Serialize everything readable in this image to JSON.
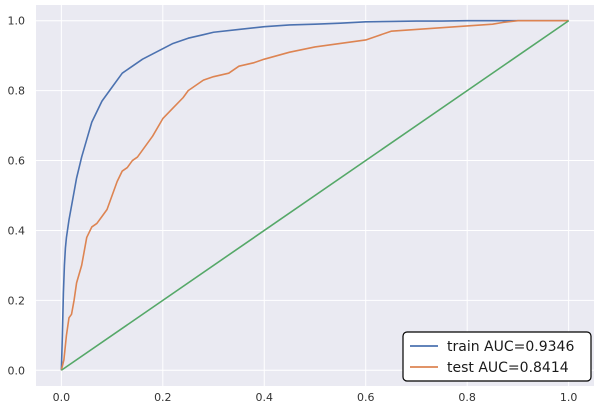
{
  "chart_data": {
    "type": "line",
    "title": "",
    "xlabel": "",
    "ylabel": "",
    "xlim": [
      -0.05,
      1.05
    ],
    "ylim": [
      -0.045,
      1.045
    ],
    "x_ticks": [
      "0.0",
      "0.2",
      "0.4",
      "0.6",
      "0.8",
      "1.0"
    ],
    "y_ticks": [
      "0.0",
      "0.2",
      "0.4",
      "0.6",
      "0.8",
      "1.0"
    ],
    "grid": true,
    "legend_position": "bottom-right",
    "background_color": "#eaeaf2",
    "series": [
      {
        "name": "train AUC=0.9346",
        "color": "#4c72b0",
        "x": [
          0,
          0.002,
          0.004,
          0.006,
          0.008,
          0.01,
          0.015,
          0.02,
          0.025,
          0.03,
          0.035,
          0.04,
          0.05,
          0.06,
          0.07,
          0.08,
          0.09,
          0.1,
          0.12,
          0.14,
          0.16,
          0.18,
          0.2,
          0.22,
          0.25,
          0.28,
          0.3,
          0.35,
          0.4,
          0.45,
          0.5,
          0.55,
          0.6,
          0.65,
          0.7,
          0.75,
          0.8,
          0.85,
          0.9,
          0.95,
          1.0
        ],
        "y": [
          0,
          0.1,
          0.22,
          0.3,
          0.35,
          0.38,
          0.43,
          0.47,
          0.51,
          0.55,
          0.58,
          0.61,
          0.66,
          0.71,
          0.74,
          0.77,
          0.79,
          0.81,
          0.85,
          0.87,
          0.89,
          0.905,
          0.92,
          0.935,
          0.95,
          0.96,
          0.967,
          0.975,
          0.983,
          0.988,
          0.99,
          0.993,
          0.997,
          0.998,
          0.999,
          0.999,
          1.0,
          1.0,
          1.0,
          1.0,
          1.0
        ]
      },
      {
        "name": "test AUC=0.8414",
        "color": "#dd8452",
        "x": [
          0,
          0.005,
          0.01,
          0.015,
          0.02,
          0.025,
          0.03,
          0.04,
          0.05,
          0.06,
          0.07,
          0.08,
          0.09,
          0.1,
          0.11,
          0.12,
          0.13,
          0.14,
          0.15,
          0.16,
          0.18,
          0.2,
          0.22,
          0.24,
          0.25,
          0.26,
          0.28,
          0.3,
          0.33,
          0.35,
          0.38,
          0.4,
          0.45,
          0.5,
          0.55,
          0.6,
          0.62,
          0.65,
          0.7,
          0.75,
          0.8,
          0.85,
          0.87,
          0.9,
          1.0
        ],
        "y": [
          0,
          0.03,
          0.1,
          0.15,
          0.16,
          0.2,
          0.25,
          0.3,
          0.38,
          0.41,
          0.42,
          0.44,
          0.46,
          0.5,
          0.54,
          0.57,
          0.58,
          0.6,
          0.61,
          0.63,
          0.67,
          0.72,
          0.75,
          0.78,
          0.8,
          0.81,
          0.83,
          0.84,
          0.85,
          0.87,
          0.88,
          0.89,
          0.91,
          0.925,
          0.935,
          0.945,
          0.955,
          0.97,
          0.975,
          0.98,
          0.985,
          0.99,
          0.995,
          1.0,
          1.0
        ]
      },
      {
        "name": "",
        "color": "#55a868",
        "x": [
          0,
          1
        ],
        "y": [
          0,
          1
        ]
      }
    ]
  }
}
